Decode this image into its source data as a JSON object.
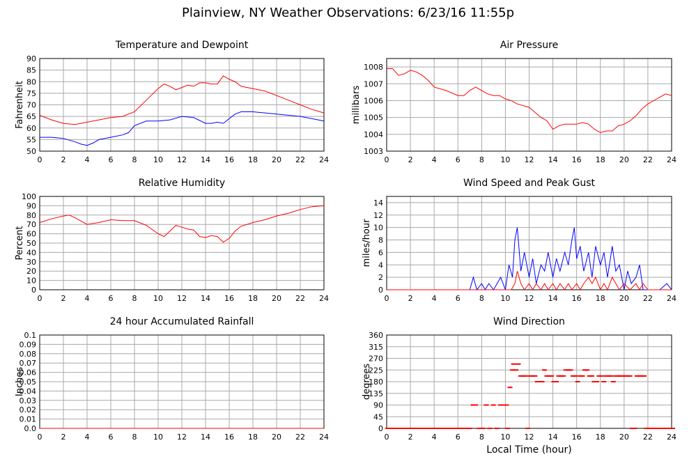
{
  "title": "Plainview, NY Weather Observations: 6/23/16 11:55p",
  "xlabel_global": "Local Time (hour)",
  "colors": {
    "red": "#ff0000",
    "blue": "#0000ff",
    "grid": "#a8a8a8",
    "axis": "#000000"
  },
  "chart_data": [
    {
      "id": "temp",
      "type": "line",
      "title": "Temperature and Dewpoint",
      "ylabel": "Fahrenheit",
      "xlim": [
        0,
        24
      ],
      "ylim": [
        50,
        90
      ],
      "xticks": [
        0,
        2,
        4,
        6,
        8,
        10,
        12,
        14,
        16,
        18,
        20,
        22,
        24
      ],
      "yticks": [
        50,
        55,
        60,
        65,
        70,
        75,
        80,
        85,
        90
      ],
      "series": [
        {
          "color": "red",
          "x": [
            0,
            1,
            2,
            3,
            4,
            5,
            6,
            7,
            8,
            9,
            10,
            10.5,
            11,
            11.5,
            12,
            12.5,
            13,
            13.5,
            14,
            14.5,
            15,
            15.5,
            16,
            16.5,
            17,
            18,
            19,
            20,
            21,
            22,
            23,
            24
          ],
          "values": [
            65.5,
            63.5,
            62,
            61.5,
            62.5,
            63.5,
            64.5,
            65,
            67,
            72,
            77,
            79,
            78,
            76.5,
            77.5,
            78.5,
            78,
            79.5,
            79.5,
            79,
            79,
            82.5,
            81,
            80,
            78,
            77,
            76,
            74,
            72,
            70,
            68,
            66.5
          ]
        },
        {
          "color": "blue",
          "x": [
            0,
            1,
            2,
            3,
            3.5,
            4,
            4.5,
            5,
            6,
            7,
            7.5,
            8,
            9,
            10,
            11,
            12,
            13,
            14,
            14.5,
            15,
            15.5,
            16,
            16.5,
            17,
            18,
            19,
            20,
            21,
            22,
            23,
            24
          ],
          "values": [
            56,
            56,
            55.5,
            54,
            53,
            52.5,
            53.5,
            55,
            56,
            57,
            58,
            61,
            63,
            63,
            63.5,
            65,
            64.5,
            62,
            62,
            62.5,
            62,
            64,
            66,
            67,
            67,
            66.5,
            66,
            65.5,
            65,
            64,
            63
          ]
        }
      ]
    },
    {
      "id": "pressure",
      "type": "line",
      "title": "Air Pressure",
      "ylabel": "millibars",
      "xlim": [
        0,
        24
      ],
      "ylim": [
        1003,
        1008.5
      ],
      "xticks": [
        0,
        2,
        4,
        6,
        8,
        10,
        12,
        14,
        16,
        18,
        20,
        22,
        24
      ],
      "yticks": [
        1003,
        1004,
        1005,
        1006,
        1007,
        1008
      ],
      "series": [
        {
          "color": "red",
          "x": [
            0,
            0.5,
            1,
            1.5,
            2,
            2.5,
            3,
            3.5,
            4,
            5,
            6,
            6.5,
            7,
            7.5,
            8,
            8.5,
            9,
            9.5,
            10,
            10.5,
            11,
            12,
            12.5,
            13,
            13.5,
            14,
            14.5,
            15,
            16,
            16.5,
            17,
            17.5,
            18,
            18.5,
            19,
            19.5,
            20,
            20.5,
            21,
            21.5,
            22,
            22.5,
            23,
            23.5,
            24
          ],
          "values": [
            1007.9,
            1007.9,
            1007.5,
            1007.6,
            1007.8,
            1007.7,
            1007.5,
            1007.2,
            1006.8,
            1006.6,
            1006.3,
            1006.3,
            1006.6,
            1006.8,
            1006.6,
            1006.4,
            1006.3,
            1006.3,
            1006.1,
            1006.0,
            1005.8,
            1005.6,
            1005.3,
            1005.0,
            1004.8,
            1004.3,
            1004.5,
            1004.6,
            1004.6,
            1004.7,
            1004.6,
            1004.3,
            1004.1,
            1004.2,
            1004.2,
            1004.5,
            1004.6,
            1004.8,
            1005.1,
            1005.5,
            1005.8,
            1006.0,
            1006.2,
            1006.4,
            1006.3
          ]
        }
      ]
    },
    {
      "id": "humidity",
      "type": "line",
      "title": "Relative Humidity",
      "ylabel": "Percent",
      "xlim": [
        0,
        24
      ],
      "ylim": [
        0,
        100
      ],
      "xticks": [
        0,
        2,
        4,
        6,
        8,
        10,
        12,
        14,
        16,
        18,
        20,
        22,
        24
      ],
      "yticks": [
        0,
        10,
        20,
        30,
        40,
        50,
        60,
        70,
        80,
        90,
        100
      ],
      "series": [
        {
          "color": "red",
          "x": [
            0,
            1,
            2,
            2.5,
            3,
            4,
            5,
            6,
            7,
            8,
            9,
            10,
            10.5,
            11,
            11.5,
            12,
            12.5,
            13,
            13.5,
            14,
            14.5,
            15,
            15.5,
            16,
            16.5,
            17,
            18,
            19,
            20,
            21,
            22,
            23,
            24
          ],
          "values": [
            72,
            76,
            79,
            80,
            77,
            70,
            72,
            75,
            74,
            74,
            69,
            60,
            57,
            63,
            69,
            67,
            65,
            64,
            57,
            56,
            58,
            57,
            51,
            55,
            63,
            68,
            72,
            75,
            79,
            82,
            86,
            89,
            90
          ]
        }
      ]
    },
    {
      "id": "wind",
      "type": "line",
      "title": "Wind Speed and Peak Gust",
      "ylabel": "miles/hour",
      "xlim": [
        0,
        24
      ],
      "ylim": [
        0,
        15
      ],
      "xticks": [
        0,
        2,
        4,
        6,
        8,
        10,
        12,
        14,
        16,
        18,
        20,
        22,
        24
      ],
      "yticks": [
        0,
        2,
        4,
        6,
        8,
        10,
        12,
        14
      ],
      "series": [
        {
          "color": "blue",
          "x": [
            0,
            7,
            7.3,
            7.6,
            8,
            8.3,
            8.6,
            9,
            9.3,
            9.6,
            10,
            10.3,
            10.6,
            10.8,
            11,
            11.3,
            11.6,
            12,
            12.3,
            12.6,
            13,
            13.3,
            13.6,
            14,
            14.3,
            14.6,
            15,
            15.3,
            15.6,
            15.8,
            16,
            16.3,
            16.6,
            17,
            17.3,
            17.6,
            18,
            18.3,
            18.6,
            19,
            19.3,
            19.6,
            20,
            20.3,
            20.6,
            21,
            21.3,
            21.6,
            22,
            23,
            23.6,
            24
          ],
          "values": [
            0,
            0,
            2,
            0,
            1,
            0,
            1,
            0,
            1,
            2,
            0,
            4,
            2,
            8,
            10,
            3,
            6,
            2,
            5,
            1,
            4,
            3,
            6,
            2,
            5,
            3,
            6,
            4,
            8,
            10,
            5,
            7,
            3,
            6,
            2,
            7,
            4,
            6,
            2,
            7,
            3,
            4,
            0,
            3,
            1,
            2,
            4,
            0,
            0,
            0,
            1,
            0
          ]
        },
        {
          "color": "red",
          "x": [
            0,
            10.5,
            10.8,
            11,
            11.3,
            11.6,
            12,
            12.3,
            12.6,
            13,
            13.3,
            13.6,
            14,
            14.3,
            14.6,
            15,
            15.3,
            15.6,
            16,
            16.3,
            16.6,
            17,
            17.3,
            17.6,
            18,
            18.3,
            18.6,
            19,
            19.3,
            19.6,
            20,
            20.5,
            21,
            21.3,
            21.6,
            22,
            24
          ],
          "values": [
            0,
            0,
            1,
            3,
            1,
            0,
            1,
            0,
            1,
            0,
            1,
            0,
            1,
            0,
            1,
            0,
            1,
            0,
            1,
            0,
            1,
            2,
            1,
            2,
            0,
            1,
            0,
            2,
            1,
            0,
            1,
            0,
            1,
            0,
            1,
            0,
            0
          ]
        }
      ]
    },
    {
      "id": "rain",
      "type": "line",
      "title": "24 hour Accumulated Rainfall",
      "ylabel": "Inches",
      "xlim": [
        0,
        24
      ],
      "ylim": [
        0,
        0.1
      ],
      "xticks": [
        0,
        2,
        4,
        6,
        8,
        10,
        12,
        14,
        16,
        18,
        20,
        22,
        24
      ],
      "yticks": [
        0.0,
        0.01,
        0.02,
        0.03,
        0.04,
        0.05,
        0.06,
        0.07,
        0.08,
        0.09,
        0.1
      ],
      "ytick_labels": [
        "0.0",
        "0.01",
        "0.02",
        "0.03",
        "0.04",
        "0.05",
        "0.06",
        "0.07",
        "0.08",
        "0.09",
        "0.1"
      ],
      "series": [
        {
          "color": "red",
          "x": [
            0,
            24
          ],
          "values": [
            0,
            0
          ]
        }
      ]
    },
    {
      "id": "direction",
      "type": "scatter",
      "title": "Wind Direction",
      "ylabel": "degrees",
      "xlabel": "Local Time (hour)",
      "xlim": [
        0,
        24
      ],
      "ylim": [
        0,
        360
      ],
      "xticks": [
        0,
        2,
        4,
        6,
        8,
        10,
        12,
        14,
        16,
        18,
        20,
        22,
        24
      ],
      "yticks": [
        0,
        45,
        90,
        135,
        180,
        225,
        270,
        315,
        360
      ],
      "series": [
        {
          "color": "red",
          "x": [
            0,
            0.3,
            0.6,
            0.9,
            1.2,
            1.5,
            1.8,
            2.1,
            2.4,
            2.7,
            3,
            3.3,
            3.6,
            3.9,
            4.2,
            4.5,
            4.8,
            5.1,
            5.4,
            5.7,
            6,
            6.3,
            6.6,
            6.9,
            7.2,
            7.4,
            7.7,
            8,
            8.3,
            8.6,
            8.9,
            9.2,
            9.5,
            9.8,
            10,
            10.1,
            10.3,
            10.5,
            10.6,
            10.8,
            11,
            11.2,
            11.4,
            11.6,
            11.8,
            12,
            12.2,
            12.4,
            12.6,
            12.8,
            13,
            13.2,
            13.4,
            13.6,
            13.8,
            14,
            14.2,
            14.4,
            14.6,
            14.8,
            15,
            15.2,
            15.4,
            15.6,
            15.8,
            16,
            16.2,
            16.4,
            16.6,
            16.8,
            17,
            17.2,
            17.4,
            17.6,
            17.8,
            18,
            18.2,
            18.4,
            18.6,
            18.8,
            19,
            19.2,
            19.4,
            19.6,
            19.8,
            20,
            20.2,
            20.4,
            20.6,
            20.8,
            21,
            21.2,
            21.4,
            21.6,
            21.8,
            22,
            22.2,
            22.4,
            22.6,
            22.8,
            23,
            23.2,
            23.4,
            23.6,
            23.8,
            24
          ],
          "values": [
            0,
            0,
            0,
            0,
            0,
            0,
            0,
            0,
            0,
            0,
            0,
            0,
            0,
            0,
            0,
            0,
            0,
            0,
            0,
            0,
            0,
            0,
            0,
            0,
            90,
            90,
            0,
            0,
            90,
            0,
            90,
            0,
            90,
            90,
            90,
            0,
            158,
            225,
            248,
            225,
            248,
            202,
            202,
            202,
            0,
            202,
            202,
            202,
            180,
            180,
            180,
            225,
            202,
            202,
            202,
            180,
            180,
            202,
            202,
            202,
            225,
            225,
            225,
            202,
            202,
            180,
            202,
            202,
            225,
            225,
            202,
            202,
            180,
            180,
            202,
            202,
            180,
            202,
            202,
            202,
            180,
            202,
            202,
            202,
            202,
            202,
            202,
            202,
            0,
            0,
            202,
            202,
            202,
            202,
            0,
            0,
            0,
            0,
            0,
            0,
            0,
            0,
            0,
            0,
            0,
            0
          ]
        }
      ]
    }
  ]
}
